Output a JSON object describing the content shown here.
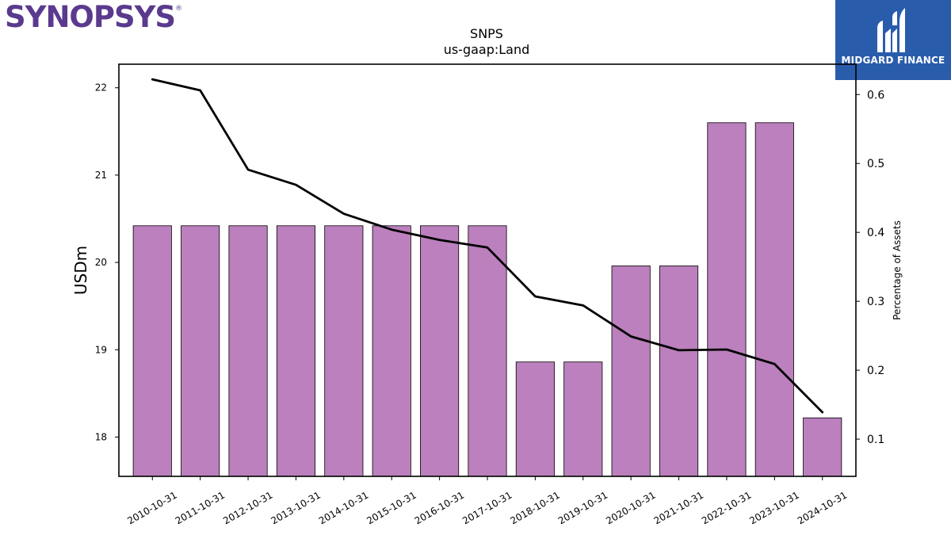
{
  "brand_left": {
    "text": "SYNOPSYS",
    "registered": "®",
    "color": "#5a3a8e"
  },
  "brand_right": {
    "text": "MIDGARD FINANCE",
    "bg_color": "#2a5cac"
  },
  "chart_data": {
    "type": "bar",
    "title": "SNPS",
    "subtitle": "us-gaap:Land",
    "ylabel": "USDm",
    "y2label": "Percentage of Assets",
    "categories": [
      "2010-10-31",
      "2011-10-31",
      "2012-10-31",
      "2013-10-31",
      "2014-10-31",
      "2015-10-31",
      "2016-10-31",
      "2017-10-31",
      "2018-10-31",
      "2019-10-31",
      "2020-10-31",
      "2021-10-31",
      "2022-10-31",
      "2023-10-31",
      "2024-10-31"
    ],
    "series": [
      {
        "type": "bar",
        "axis": "left",
        "color": "#bb80bd",
        "values": [
          20.42,
          20.42,
          20.42,
          20.42,
          20.42,
          20.42,
          20.42,
          20.42,
          18.86,
          18.86,
          19.96,
          19.96,
          21.6,
          21.6,
          18.22
        ]
      },
      {
        "type": "line",
        "axis": "right",
        "color": "#000000",
        "values": [
          0.622,
          0.606,
          0.491,
          0.469,
          0.427,
          0.404,
          0.389,
          0.378,
          0.307,
          0.294,
          0.249,
          0.229,
          0.23,
          0.209,
          0.139
        ]
      }
    ],
    "ylim": [
      17.55,
      22.27
    ],
    "y_ticks": [
      18,
      19,
      20,
      21,
      22
    ],
    "y2lim": [
      0.046,
      0.644
    ],
    "y2_ticks": [
      0.1,
      0.2,
      0.3,
      0.4,
      0.5,
      0.6
    ],
    "y2_tick_labels": [
      "0.1",
      "0.2",
      "0.3",
      "0.4",
      "0.5",
      "0.6"
    ],
    "grid": false
  }
}
